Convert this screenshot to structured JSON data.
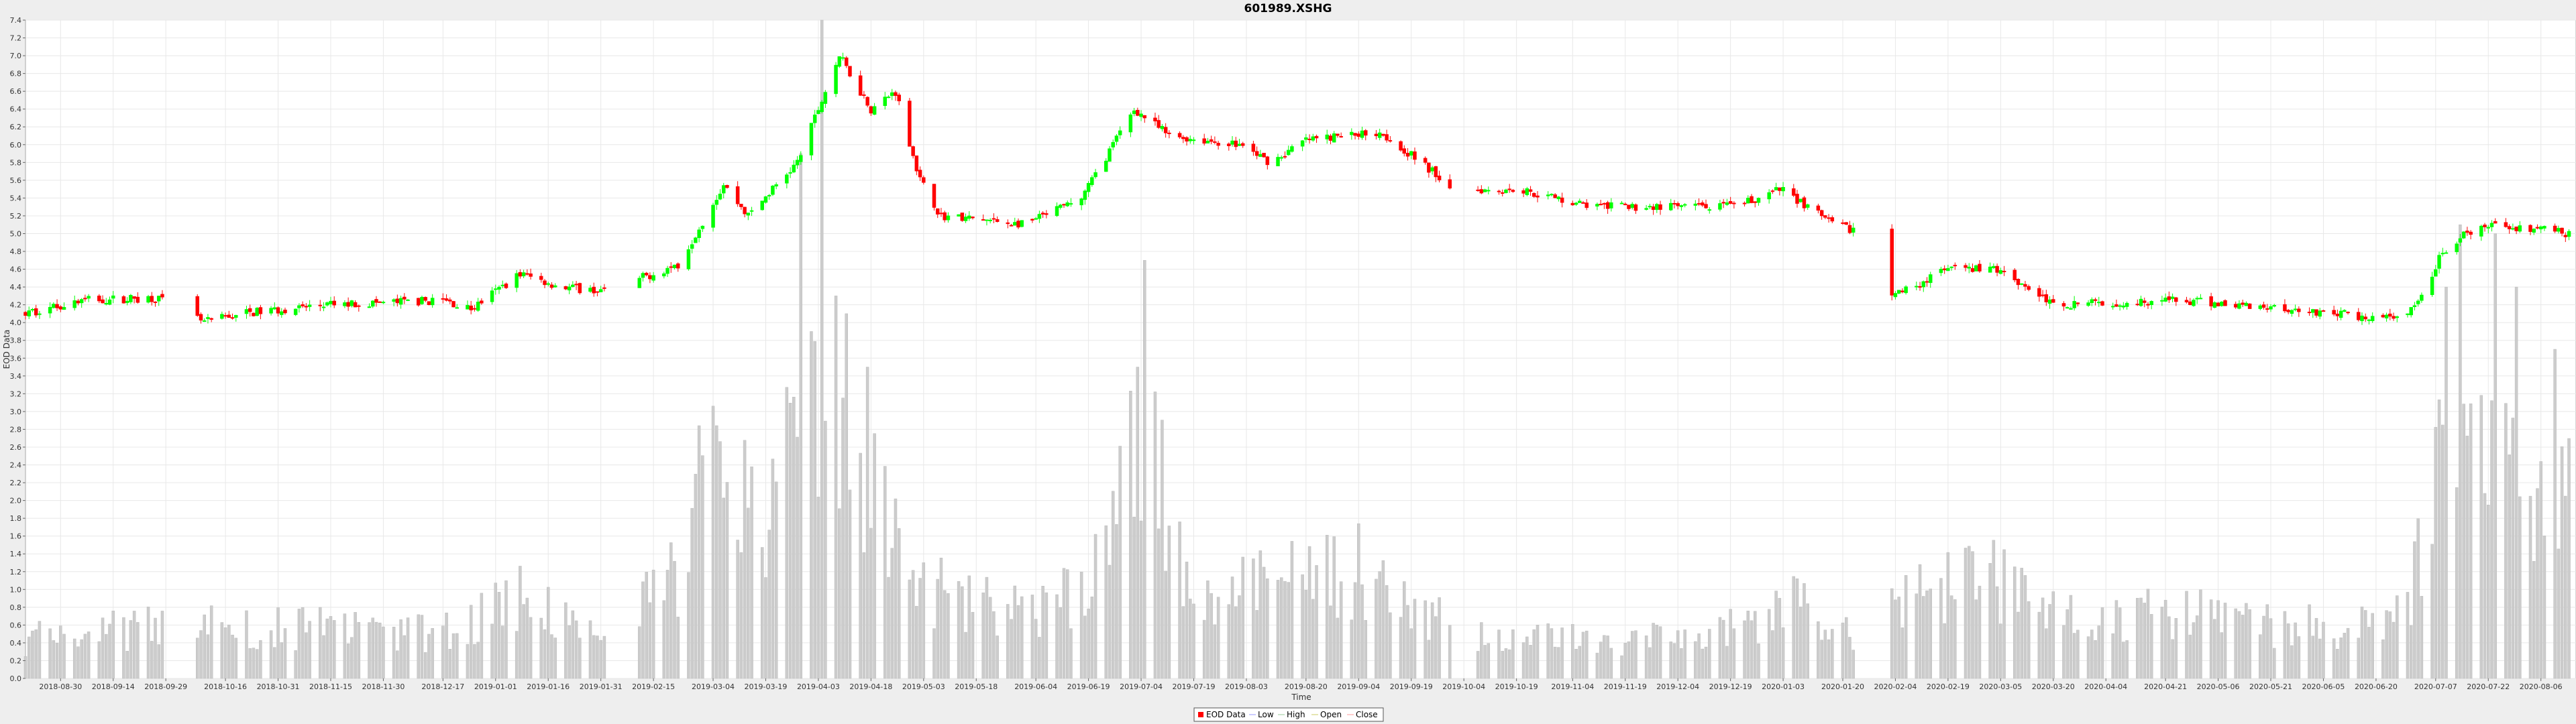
{
  "chart_data": {
    "type": "candlestick",
    "title": "601989.XSHG",
    "xlabel": "Time",
    "ylabel": "EOD Data",
    "ylim": [
      0.0,
      7.4
    ],
    "y_tick_step": 0.2,
    "grid": true,
    "legend_position": "bottom",
    "x_date_range": [
      "2018-08-20",
      "2020-08-16"
    ],
    "x_tick_labels": [
      "2018-08-30",
      "2018-09-14",
      "2018-09-29",
      "2018-10-16",
      "2018-10-31",
      "2018-11-15",
      "2018-11-30",
      "2018-12-17",
      "2019-01-01",
      "2019-01-16",
      "2019-01-31",
      "2019-02-15",
      "2019-03-04",
      "2019-03-19",
      "2019-04-03",
      "2019-04-18",
      "2019-05-03",
      "2019-05-18",
      "2019-06-04",
      "2019-06-19",
      "2019-07-04",
      "2019-07-19",
      "2019-08-03",
      "2019-08-20",
      "2019-09-04",
      "2019-09-19",
      "2019-10-04",
      "2019-10-19",
      "2019-11-04",
      "2019-11-19",
      "2019-12-04",
      "2019-12-19",
      "2020-01-03",
      "2020-01-20",
      "2020-02-04",
      "2020-02-19",
      "2020-03-05",
      "2020-03-20",
      "2020-04-04",
      "2020-04-21",
      "2020-05-06",
      "2020-05-21",
      "2020-06-05",
      "2020-06-20",
      "2020-07-07",
      "2020-07-22",
      "2020-08-06"
    ],
    "price_anchors": [
      [
        "2018-08-20",
        4.1
      ],
      [
        "2018-09-05",
        4.25
      ],
      [
        "2018-09-26",
        4.28
      ],
      [
        "2018-10-10",
        4.0
      ],
      [
        "2018-10-20",
        4.1
      ],
      [
        "2018-11-15",
        4.2
      ],
      [
        "2018-12-17",
        4.25
      ],
      [
        "2018-12-25",
        4.15
      ],
      [
        "2019-01-08",
        4.55
      ],
      [
        "2019-01-20",
        4.4
      ],
      [
        "2019-02-01",
        4.35
      ],
      [
        "2019-02-22",
        4.65
      ],
      [
        "2019-03-07",
        5.55
      ],
      [
        "2019-03-14",
        5.2
      ],
      [
        "2019-03-28",
        5.8
      ],
      [
        "2019-04-05",
        6.6
      ],
      [
        "2019-04-09",
        7.0
      ],
      [
        "2019-04-18",
        6.4
      ],
      [
        "2019-04-25",
        6.6
      ],
      [
        "2019-05-02",
        5.6
      ],
      [
        "2019-05-08",
        5.2
      ],
      [
        "2019-06-01",
        5.1
      ],
      [
        "2019-06-17",
        5.4
      ],
      [
        "2019-07-02",
        6.4
      ],
      [
        "2019-07-12",
        6.1
      ],
      [
        "2019-08-01",
        6.0
      ],
      [
        "2019-08-10",
        5.8
      ],
      [
        "2019-08-20",
        6.05
      ],
      [
        "2019-09-10",
        6.15
      ],
      [
        "2019-09-25",
        5.7
      ],
      [
        "2019-10-01",
        5.5
      ],
      [
        "2019-10-19",
        5.5
      ],
      [
        "2019-11-10",
        5.3
      ],
      [
        "2019-11-25",
        5.3
      ],
      [
        "2019-12-20",
        5.3
      ],
      [
        "2020-01-03",
        5.5
      ],
      [
        "2020-01-17",
        5.1
      ],
      [
        "2020-01-23",
        5.05
      ],
      [
        "2020-02-03",
        4.3
      ],
      [
        "2020-02-19",
        4.6
      ],
      [
        "2020-03-05",
        4.6
      ],
      [
        "2020-03-20",
        4.2
      ],
      [
        "2020-04-21",
        4.25
      ],
      [
        "2020-05-21",
        4.18
      ],
      [
        "2020-06-20",
        4.05
      ],
      [
        "2020-06-28",
        4.05
      ],
      [
        "2020-07-02",
        4.2
      ],
      [
        "2020-07-09",
        4.8
      ],
      [
        "2020-07-16",
        5.0
      ],
      [
        "2020-07-25",
        5.1
      ],
      [
        "2020-08-06",
        5.05
      ],
      [
        "2020-08-14",
        5.0
      ]
    ],
    "volume_anchors": [
      [
        "2018-08-20",
        0.45
      ],
      [
        "2018-09-14",
        0.55
      ],
      [
        "2018-10-16",
        0.6
      ],
      [
        "2018-11-15",
        0.55
      ],
      [
        "2018-12-17",
        0.5
      ],
      [
        "2019-01-08",
        0.95
      ],
      [
        "2019-02-01",
        0.4
      ],
      [
        "2019-02-22",
        1.2
      ],
      [
        "2019-03-04",
        2.5
      ],
      [
        "2019-03-19",
        1.8
      ],
      [
        "2019-04-03",
        3.4
      ],
      [
        "2019-04-18",
        2.0
      ],
      [
        "2019-05-03",
        1.0
      ],
      [
        "2019-06-04",
        0.7
      ],
      [
        "2019-06-25",
        1.3
      ],
      [
        "2019-07-04",
        3.0
      ],
      [
        "2019-07-19",
        1.0
      ],
      [
        "2019-08-20",
        1.1
      ],
      [
        "2019-09-04",
        1.2
      ],
      [
        "2019-09-19",
        0.7
      ],
      [
        "2019-10-19",
        0.45
      ],
      [
        "2019-11-19",
        0.4
      ],
      [
        "2019-12-19",
        0.55
      ],
      [
        "2020-01-06",
        0.9
      ],
      [
        "2020-01-20",
        0.5
      ],
      [
        "2020-02-04",
        0.9
      ],
      [
        "2020-02-25",
        1.2
      ],
      [
        "2020-03-05",
        1.1
      ],
      [
        "2020-04-04",
        0.6
      ],
      [
        "2020-04-21",
        0.75
      ],
      [
        "2020-05-21",
        0.6
      ],
      [
        "2020-06-20",
        0.55
      ],
      [
        "2020-06-29",
        0.7
      ],
      [
        "2020-07-07",
        2.4
      ],
      [
        "2020-07-22",
        2.3
      ],
      [
        "2020-08-06",
        2.4
      ],
      [
        "2020-08-14",
        2.2
      ]
    ],
    "volume_spikes": [
      [
        "2019-03-29",
        5.9
      ],
      [
        "2019-04-01",
        3.9
      ],
      [
        "2019-04-04",
        7.4
      ],
      [
        "2019-04-08",
        4.3
      ],
      [
        "2019-04-11",
        4.1
      ],
      [
        "2019-04-17",
        3.5
      ],
      [
        "2019-07-03",
        3.5
      ],
      [
        "2019-07-05",
        4.7
      ],
      [
        "2020-07-10",
        4.4
      ],
      [
        "2020-07-14",
        5.1
      ],
      [
        "2020-07-24",
        5.0
      ],
      [
        "2020-07-30",
        4.4
      ],
      [
        "2020-08-10",
        3.7
      ]
    ],
    "gaps": [
      [
        "2018-09-30",
        "2018-10-07"
      ],
      [
        "2019-02-02",
        "2019-02-10"
      ],
      [
        "2019-10-01",
        "2019-10-07"
      ],
      [
        "2020-01-24",
        "2020-02-02"
      ]
    ],
    "legend": [
      "EOD Data",
      "Low",
      "High",
      "Open",
      "Close"
    ],
    "colors": {
      "up": "#00ff00",
      "down": "#ff0000",
      "volume": "#cccccc",
      "grid": "#e8e8e8",
      "plot_bg": "#ffffff",
      "page_bg": "#eeeeee",
      "low": "#9999ff",
      "high": "#99cc99",
      "open": "#cccc66",
      "close": "#ff9999"
    }
  }
}
